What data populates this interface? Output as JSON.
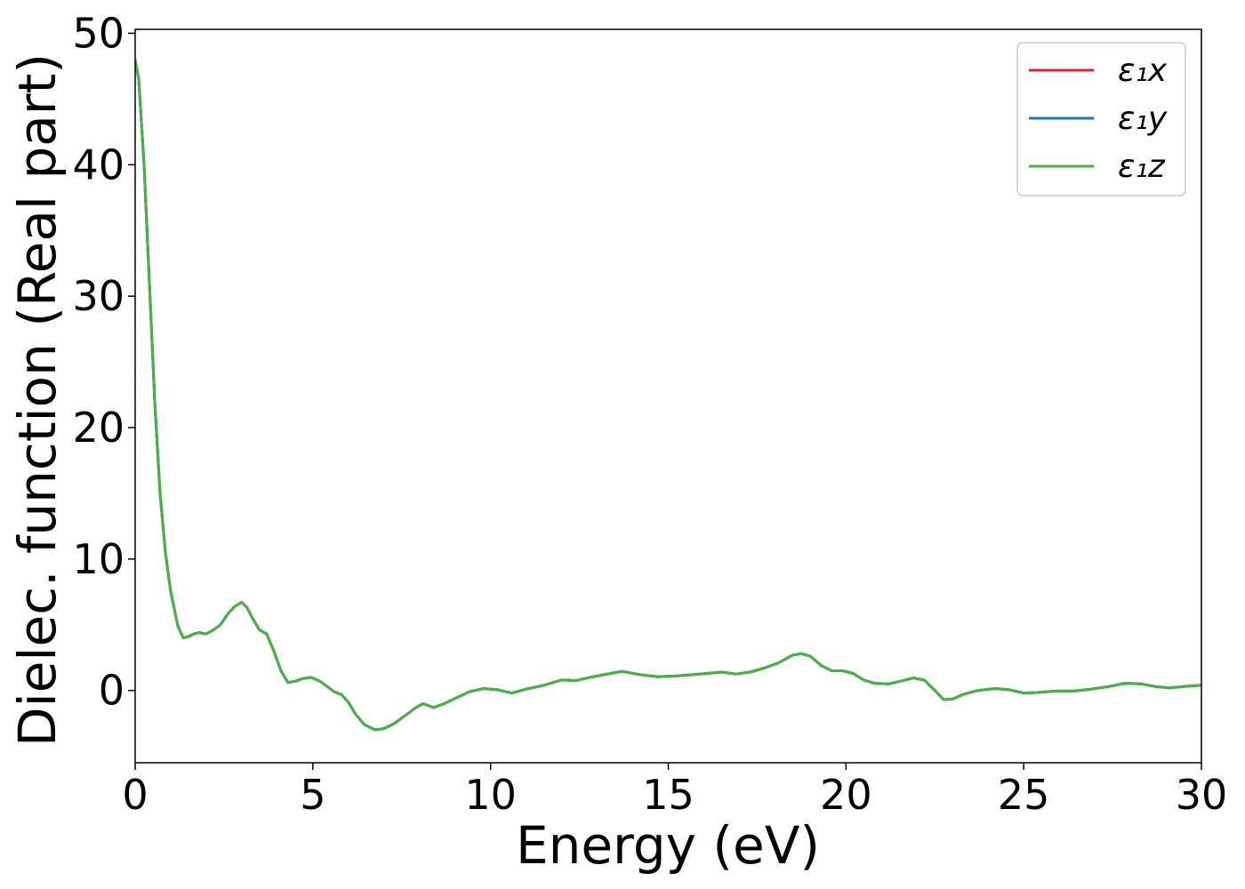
{
  "chart_data": {
    "type": "line",
    "xlabel": "Energy (eV)",
    "ylabel": "Dielec. function (Real part)",
    "xlim": [
      0,
      30
    ],
    "ylim": [
      -5.5,
      50.3
    ],
    "xticks": [
      0,
      5,
      10,
      15,
      20,
      25,
      30
    ],
    "yticks": [
      0,
      10,
      20,
      30,
      40,
      50
    ],
    "grid": false,
    "legend_position": "top-right",
    "x": [
      0.0,
      0.1,
      0.25,
      0.4,
      0.55,
      0.7,
      0.85,
      1.0,
      1.2,
      1.35,
      1.5,
      1.65,
      1.8,
      2.0,
      2.2,
      2.4,
      2.6,
      2.8,
      3.0,
      3.15,
      3.3,
      3.5,
      3.7,
      3.9,
      4.1,
      4.3,
      4.5,
      4.7,
      4.95,
      5.2,
      5.4,
      5.6,
      5.8,
      6.0,
      6.2,
      6.45,
      6.75,
      7.0,
      7.3,
      7.6,
      7.9,
      8.1,
      8.4,
      8.7,
      9.0,
      9.4,
      9.8,
      10.2,
      10.6,
      11.0,
      11.5,
      12.0,
      12.4,
      12.8,
      13.2,
      13.7,
      14.2,
      14.7,
      15.2,
      15.7,
      16.1,
      16.5,
      16.9,
      17.3,
      17.7,
      18.1,
      18.5,
      18.75,
      19.0,
      19.3,
      19.6,
      19.9,
      20.2,
      20.5,
      20.8,
      21.2,
      21.6,
      21.9,
      22.2,
      22.5,
      22.75,
      23.0,
      23.3,
      23.7,
      24.2,
      24.6,
      25.0,
      25.4,
      25.9,
      26.4,
      26.9,
      27.4,
      27.85,
      28.3,
      28.7,
      29.1,
      29.5,
      30.0
    ],
    "series": [
      {
        "name": "ε₁x",
        "color": "#d62728",
        "values": [
          48.0,
          46.5,
          40.0,
          31.0,
          22.0,
          15.0,
          10.5,
          7.5,
          4.9,
          4.0,
          4.1,
          4.3,
          4.4,
          4.3,
          4.6,
          5.0,
          5.8,
          6.4,
          6.7,
          6.3,
          5.5,
          4.6,
          4.3,
          3.0,
          1.5,
          0.6,
          0.7,
          0.9,
          1.0,
          0.7,
          0.3,
          -0.1,
          -0.3,
          -0.9,
          -1.8,
          -2.6,
          -3.0,
          -2.9,
          -2.5,
          -1.9,
          -1.3,
          -1.0,
          -1.3,
          -1.0,
          -0.6,
          -0.1,
          0.15,
          0.05,
          -0.2,
          0.1,
          0.4,
          0.8,
          0.75,
          1.0,
          1.2,
          1.45,
          1.2,
          1.05,
          1.1,
          1.2,
          1.3,
          1.4,
          1.25,
          1.4,
          1.7,
          2.1,
          2.7,
          2.8,
          2.6,
          1.9,
          1.5,
          1.5,
          1.3,
          0.8,
          0.55,
          0.5,
          0.75,
          0.95,
          0.8,
          0.0,
          -0.7,
          -0.65,
          -0.3,
          0.0,
          0.15,
          0.05,
          -0.2,
          -0.15,
          -0.05,
          -0.05,
          0.1,
          0.3,
          0.55,
          0.5,
          0.3,
          0.2,
          0.3,
          0.4
        ]
      },
      {
        "name": "ε₁y",
        "color": "#1f77b4",
        "values": [
          48.0,
          46.5,
          40.0,
          31.0,
          22.0,
          15.0,
          10.5,
          7.5,
          4.9,
          4.0,
          4.1,
          4.3,
          4.4,
          4.3,
          4.6,
          5.0,
          5.8,
          6.4,
          6.7,
          6.3,
          5.5,
          4.6,
          4.3,
          3.0,
          1.5,
          0.6,
          0.7,
          0.9,
          1.0,
          0.7,
          0.3,
          -0.1,
          -0.3,
          -0.9,
          -1.8,
          -2.6,
          -3.0,
          -2.9,
          -2.5,
          -1.9,
          -1.3,
          -1.0,
          -1.3,
          -1.0,
          -0.6,
          -0.1,
          0.15,
          0.05,
          -0.2,
          0.1,
          0.4,
          0.8,
          0.75,
          1.0,
          1.2,
          1.45,
          1.2,
          1.05,
          1.1,
          1.2,
          1.3,
          1.4,
          1.25,
          1.4,
          1.7,
          2.1,
          2.7,
          2.8,
          2.6,
          1.9,
          1.5,
          1.5,
          1.3,
          0.8,
          0.55,
          0.5,
          0.75,
          0.95,
          0.8,
          0.0,
          -0.7,
          -0.65,
          -0.3,
          0.0,
          0.15,
          0.05,
          -0.2,
          -0.15,
          -0.05,
          -0.05,
          0.1,
          0.3,
          0.55,
          0.5,
          0.3,
          0.2,
          0.3,
          0.4
        ]
      },
      {
        "name": "ε₁z",
        "color": "#4daf4a",
        "values": [
          48.0,
          46.5,
          40.0,
          31.0,
          22.0,
          15.0,
          10.5,
          7.5,
          4.9,
          4.0,
          4.1,
          4.3,
          4.4,
          4.3,
          4.6,
          5.0,
          5.8,
          6.4,
          6.7,
          6.3,
          5.5,
          4.6,
          4.3,
          3.0,
          1.5,
          0.6,
          0.7,
          0.9,
          1.0,
          0.7,
          0.3,
          -0.1,
          -0.3,
          -0.9,
          -1.8,
          -2.6,
          -3.0,
          -2.9,
          -2.5,
          -1.9,
          -1.3,
          -1.0,
          -1.3,
          -1.0,
          -0.6,
          -0.1,
          0.15,
          0.05,
          -0.2,
          0.1,
          0.4,
          0.8,
          0.75,
          1.0,
          1.2,
          1.45,
          1.2,
          1.05,
          1.1,
          1.2,
          1.3,
          1.4,
          1.25,
          1.4,
          1.7,
          2.1,
          2.7,
          2.8,
          2.6,
          1.9,
          1.5,
          1.5,
          1.3,
          0.8,
          0.55,
          0.5,
          0.75,
          0.95,
          0.8,
          0.0,
          -0.7,
          -0.65,
          -0.3,
          0.0,
          0.15,
          0.05,
          -0.2,
          -0.15,
          -0.05,
          -0.05,
          0.1,
          0.3,
          0.55,
          0.5,
          0.3,
          0.2,
          0.3,
          0.4
        ]
      }
    ]
  }
}
